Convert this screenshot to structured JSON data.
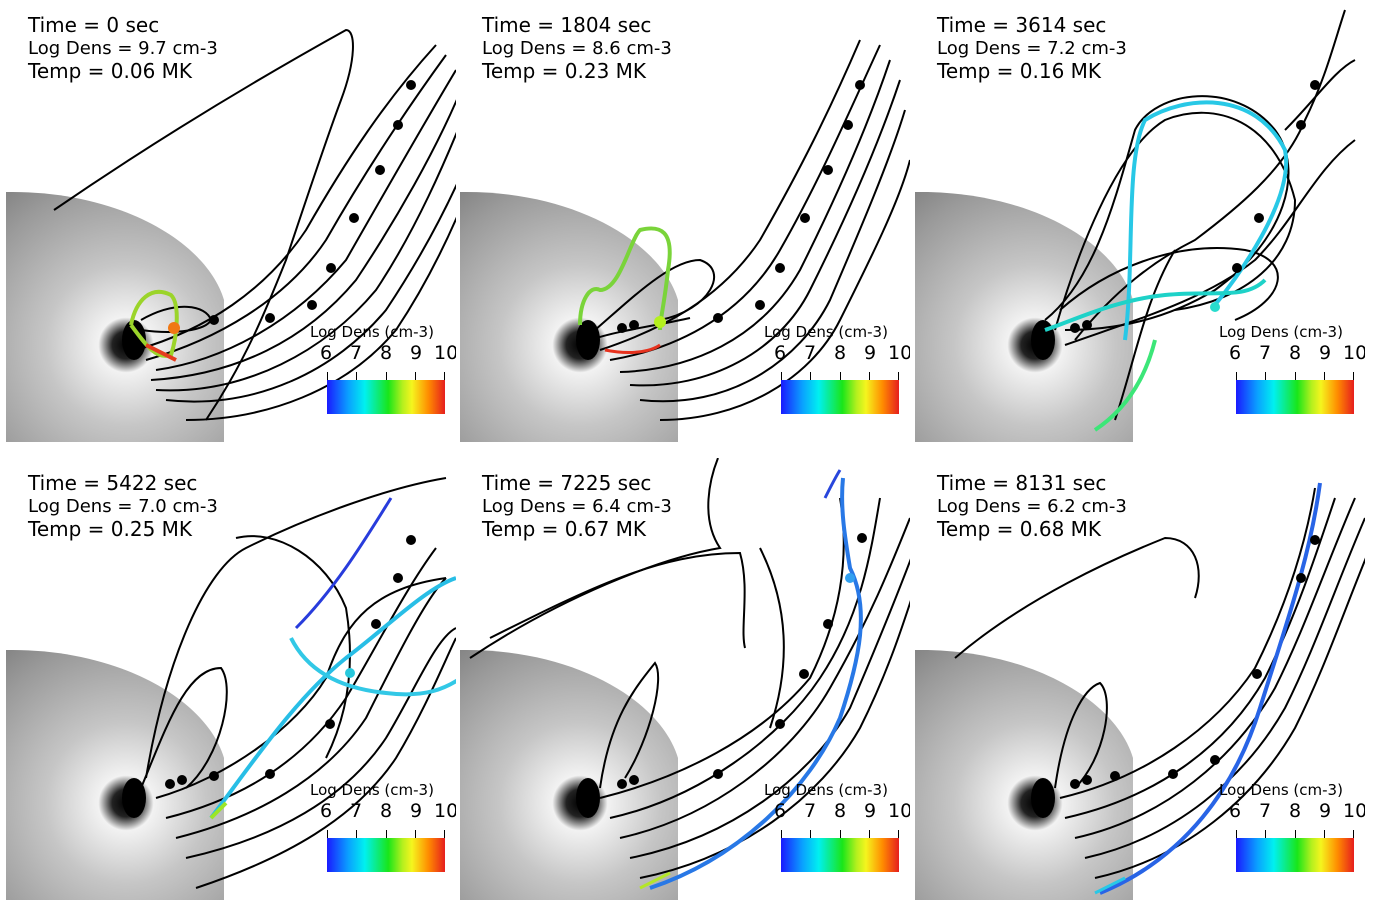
{
  "legend": {
    "title": "Log Dens (cm-3)",
    "ticks": [
      "6",
      "7",
      "8",
      "9",
      "10"
    ]
  },
  "panels": [
    {
      "time": "Time = 0 sec",
      "dens": "Log Dens = 9.7 cm-3",
      "temp": "Temp = 0.06 MK"
    },
    {
      "time": "Time = 1804 sec",
      "dens": "Log Dens = 8.6 cm-3",
      "temp": "Temp = 0.23 MK"
    },
    {
      "time": "Time = 3614 sec",
      "dens": "Log Dens = 7.2 cm-3",
      "temp": "Temp = 0.16 MK"
    },
    {
      "time": "Time = 5422 sec",
      "dens": "Log Dens = 7.0 cm-3",
      "temp": "Temp = 0.25 MK"
    },
    {
      "time": "Time = 7225 sec",
      "dens": "Log Dens = 6.4 cm-3",
      "temp": "Temp = 0.67 MK"
    },
    {
      "time": "Time = 8131 sec",
      "dens": "Log Dens = 6.2 cm-3",
      "temp": "Temp = 0.68 MK"
    }
  ],
  "colors": {
    "high_density": "#e63c1e",
    "mid_density": "#8cdc28",
    "low_density": "#2850e6",
    "field_line": "#000000"
  }
}
